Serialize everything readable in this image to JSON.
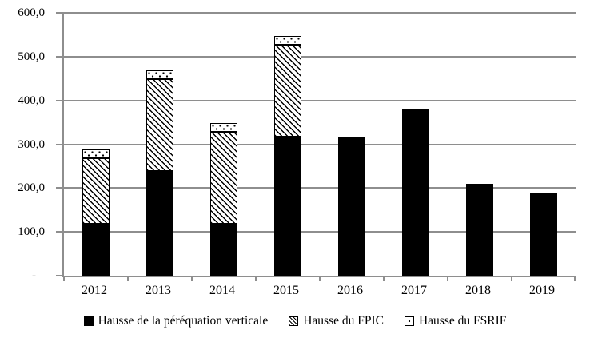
{
  "colors": {
    "bar_fill": "#000000",
    "grid_and_axis": "#8e8e8e",
    "pattern_background": "#ffffff",
    "text": "#000000",
    "background": "#ffffff"
  },
  "chart_data": {
    "type": "bar",
    "stacked": true,
    "title": "",
    "xlabel": "",
    "ylabel": "",
    "categories": [
      "2012",
      "2013",
      "2014",
      "2015",
      "2016",
      "2017",
      "2018",
      "2019"
    ],
    "series": [
      {
        "name": "Hausse de la péréquation verticale",
        "pattern": "solid-black",
        "values": [
          119,
          238,
          119,
          317,
          317,
          380,
          210,
          190
        ]
      },
      {
        "name": "Hausse du FPIC",
        "pattern": "diagonal-hatch",
        "values": [
          150,
          210,
          210,
          210,
          0,
          0,
          0,
          0
        ]
      },
      {
        "name": "Hausse du FSRIF",
        "pattern": "dots",
        "values": [
          20,
          20,
          20,
          20,
          0,
          0,
          0,
          0
        ]
      }
    ],
    "stack_totals": [
      289,
      468,
      349,
      547,
      317,
      380,
      210,
      190
    ],
    "ylim": [
      0,
      600
    ],
    "ytick_step": 100,
    "ytick_labels": [
      "-",
      "100,0",
      "200,0",
      "300,0",
      "400,0",
      "500,0",
      "600,0"
    ],
    "grid": true,
    "legend_position": "bottom"
  }
}
